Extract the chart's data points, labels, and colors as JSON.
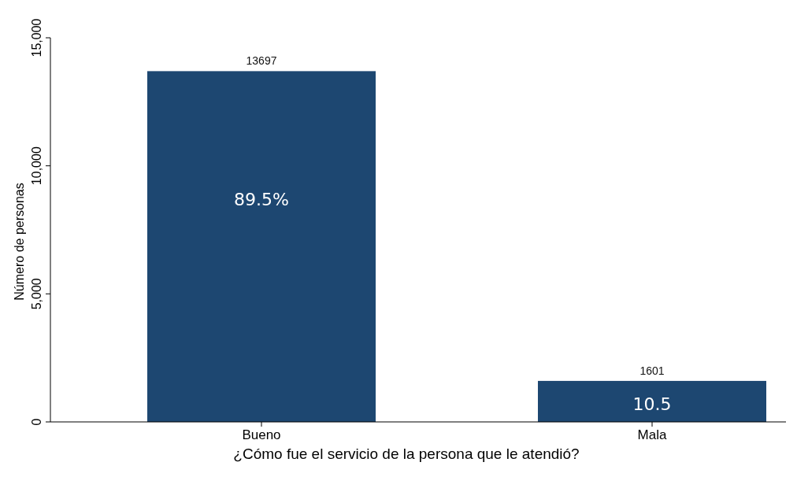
{
  "chart_data": {
    "type": "bar",
    "xlabel": "¿Cómo fue el servicio de la persona que le atendió?",
    "ylabel": "Número de personas",
    "categories": [
      "Bueno",
      "Mala"
    ],
    "values": [
      13697,
      1601
    ],
    "color": "#1d4771",
    "ylim": [
      0,
      15000
    ],
    "yticks": [
      {
        "value": 0,
        "label": "0"
      },
      {
        "value": 5000,
        "label": "5,000"
      },
      {
        "value": 10000,
        "label": "10,000"
      },
      {
        "value": 15000,
        "label": "15,000"
      }
    ],
    "grid": false,
    "data_labels": true,
    "annotations": [
      "89.5%",
      "10.5"
    ]
  }
}
